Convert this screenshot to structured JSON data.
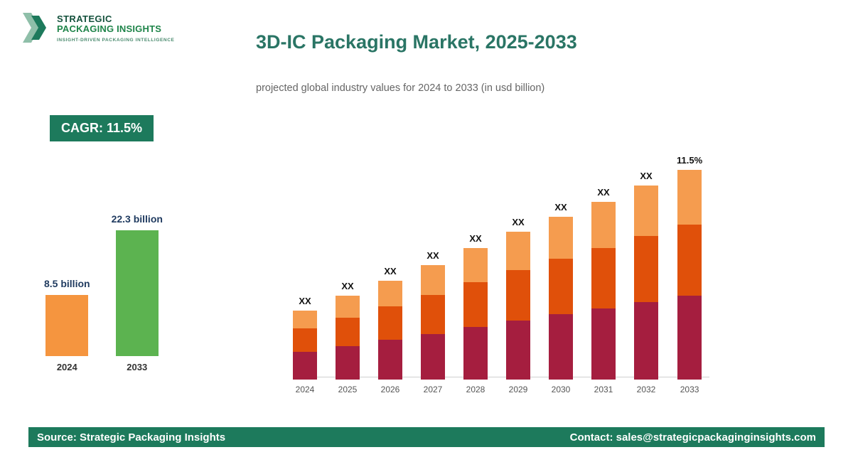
{
  "logo": {
    "line1": "STRATEGIC",
    "line2": "PACKAGING INSIGHTS",
    "tagline": "INSIGHT-DRIVEN PACKAGING INTELLIGENCE"
  },
  "header": {
    "title": "3D-IC Packaging Market, 2025-2033",
    "subtitle": "projected global industry values for 2024 to 2033 (in usd billion)"
  },
  "cagr_badge": "CAGR: 11.5%",
  "colors": {
    "brand_green": "#1D7A5C",
    "title_teal": "#2A7565",
    "mini_orange": "#F5953F",
    "mini_green": "#5CB350",
    "segment_maroon": "#A51E3F",
    "segment_orange_red": "#E0500A",
    "segment_light_orange": "#F59C4F"
  },
  "chart_data": [
    {
      "type": "bar",
      "title": "Market size 2024 vs 2033",
      "categories": [
        "2024",
        "2033"
      ],
      "values": [
        8.5,
        22.3
      ],
      "value_labels": [
        "8.5 billion",
        "22.3 billion"
      ],
      "bar_colors": [
        "#F5953F",
        "#5CB350"
      ],
      "ylabel": "usd billion"
    },
    {
      "type": "bar",
      "subtype": "stacked",
      "title": "Projected global industry values 2024-2033 (values masked as XX)",
      "categories": [
        "2024",
        "2025",
        "2026",
        "2027",
        "2028",
        "2029",
        "2030",
        "2031",
        "2032",
        "2033"
      ],
      "series": [
        {
          "name": "bottom",
          "color": "#A51E3F",
          "values": [
            3.9,
            4.7,
            5.6,
            6.4,
            7.4,
            8.3,
            9.2,
            10.0,
            10.9,
            11.8
          ]
        },
        {
          "name": "middle",
          "color": "#E0500A",
          "values": [
            3.3,
            4.0,
            4.7,
            5.5,
            6.3,
            7.1,
            7.8,
            8.5,
            9.3,
            10.0
          ]
        },
        {
          "name": "top",
          "color": "#F59C4F",
          "values": [
            2.5,
            3.1,
            3.6,
            4.2,
            4.8,
            5.4,
            5.9,
            6.5,
            7.1,
            7.7
          ]
        }
      ],
      "bar_labels": [
        "XX",
        "XX",
        "XX",
        "XX",
        "XX",
        "XX",
        "XX",
        "XX",
        "XX",
        "11.5%"
      ],
      "grid": false,
      "legend": "none"
    }
  ],
  "footer": {
    "source": "Source: Strategic Packaging Insights",
    "contact": "Contact: sales@strategicpackaginginsights.com"
  }
}
